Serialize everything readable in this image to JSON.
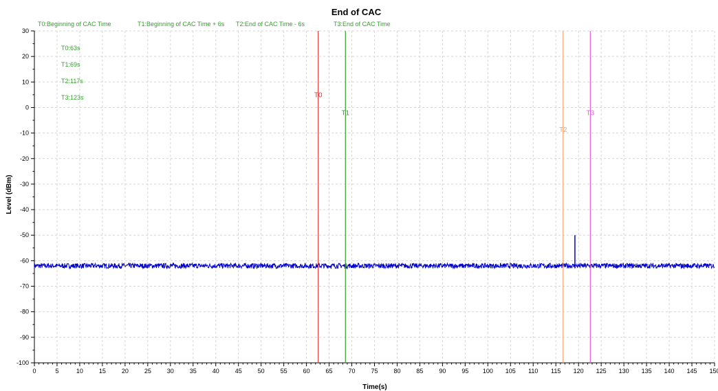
{
  "chart_data": {
    "type": "line",
    "title": "End of CAC",
    "xlabel": "Time(s)",
    "ylabel": "Level (dBm)",
    "xlim": [
      0,
      150
    ],
    "ylim": [
      -100,
      30
    ],
    "x_ticks": [
      0,
      5,
      10,
      15,
      20,
      25,
      30,
      35,
      40,
      45,
      50,
      55,
      60,
      65,
      70,
      75,
      80,
      85,
      90,
      95,
      100,
      105,
      110,
      115,
      120,
      125,
      130,
      135,
      140,
      145,
      150
    ],
    "y_ticks": [
      30,
      20,
      10,
      0,
      -10,
      -20,
      -30,
      -40,
      -50,
      -60,
      -70,
      -80,
      -90,
      -100
    ],
    "grid": true,
    "series": [
      {
        "color": "#0000cc",
        "baseline_level": -62,
        "noise_band": [
          -63,
          -61
        ],
        "spike": {
          "x": 119.2,
          "y": -50
        }
      }
    ],
    "markers": [
      {
        "label": "T0",
        "x": 62.6,
        "color": "#dd3333",
        "label_y": 4
      },
      {
        "label": "T1",
        "x": 68.6,
        "color": "#33a02c",
        "label_y": -3
      },
      {
        "label": "T2",
        "x": 116.6,
        "color": "#f4a46a",
        "label_y": -9.5
      },
      {
        "label": "T3",
        "x": 122.6,
        "color": "#e45de4",
        "label_y": -3
      }
    ],
    "legend_top": [
      "T0:Beginning of CAC Time",
      "T1:Beginning of CAC Time + 6s",
      "T2:End of CAC Time - 6s",
      "T3:End of CAC Time"
    ],
    "info_lines": [
      "T0:63s",
      "T1:69s",
      "T2:117s",
      "T3:123s"
    ],
    "info_color": "#33a02c"
  }
}
